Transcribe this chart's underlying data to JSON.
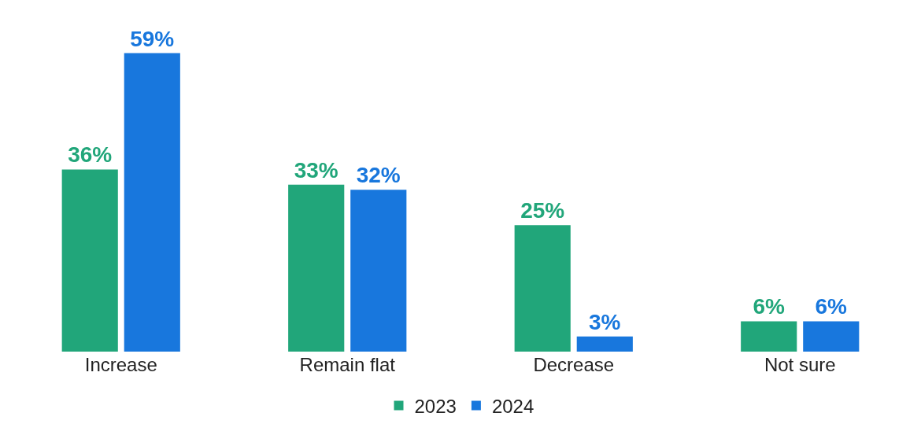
{
  "chart_data": {
    "type": "bar",
    "categories": [
      "Increase",
      "Remain flat",
      "Decrease",
      "Not sure"
    ],
    "series": [
      {
        "name": "2023",
        "color": "#21a67a",
        "values": [
          36,
          33,
          25,
          6
        ],
        "value_labels": [
          "36%",
          "33%",
          "25%",
          "6%"
        ]
      },
      {
        "name": "2024",
        "color": "#1877dd",
        "values": [
          59,
          32,
          3,
          6
        ],
        "value_labels": [
          "59%",
          "32%",
          "3%",
          "6%"
        ]
      }
    ],
    "legend": "bottom"
  }
}
